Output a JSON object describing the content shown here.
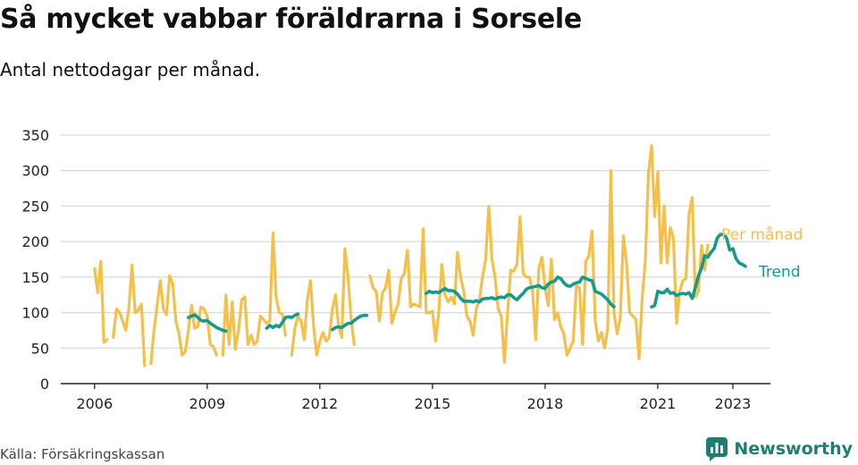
{
  "title": "Så mycket vabbar föräldrarna i Sorsele",
  "subtitle": "Antal nettodagar per månad.",
  "source": "Källa: Försäkringskassan",
  "brand": {
    "name": "Newsworthy",
    "icon": "newsworthy-logo-icon"
  },
  "colors": {
    "monthly": "#f5c04a",
    "trend": "#159a8c",
    "grid": "#d9d9d9",
    "axis": "#222222",
    "text": "#222222"
  },
  "chart_data": {
    "type": "line",
    "title": "Så mycket vabbar föräldrarna i Sorsele",
    "subtitle": "Antal nettodagar per månad.",
    "x_start": "2006-01",
    "x_range": [
      2005.1,
      2024.0
    ],
    "ylim": [
      0,
      350
    ],
    "yticks": [
      0,
      50,
      100,
      150,
      200,
      250,
      300,
      350
    ],
    "xticks": [
      2006,
      2009,
      2012,
      2015,
      2018,
      2021,
      2023
    ],
    "grid": true,
    "legend": "right-end labels",
    "series": [
      {
        "name": "Per månad",
        "color": "#f5c04a",
        "values": [
          162,
          128,
          172,
          58,
          62,
          null,
          65,
          105,
          100,
          88,
          75,
          108,
          167,
          100,
          103,
          112,
          25,
          null,
          28,
          75,
          110,
          145,
          105,
          97,
          152,
          140,
          88,
          70,
          40,
          45,
          75,
          110,
          78,
          80,
          108,
          105,
          95,
          55,
          52,
          40,
          null,
          40,
          125,
          55,
          115,
          48,
          75,
          118,
          122,
          55,
          68,
          55,
          60,
          95,
          90,
          85,
          88,
          212,
          122,
          100,
          98,
          68,
          null,
          40,
          78,
          95,
          88,
          62,
          118,
          145,
          80,
          40,
          60,
          72,
          60,
          65,
          105,
          125,
          80,
          65,
          190,
          150,
          90,
          55,
          null,
          null,
          null,
          null,
          152,
          135,
          130,
          88,
          128,
          135,
          160,
          85,
          100,
          112,
          148,
          155,
          188,
          108,
          112,
          110,
          108,
          218,
          100,
          100,
          102,
          60,
          100,
          168,
          125,
          115,
          122,
          112,
          185,
          150,
          130,
          95,
          88,
          68,
          105,
          118,
          150,
          175,
          250,
          175,
          150,
          105,
          95,
          30,
          100,
          160,
          158,
          168,
          235,
          155,
          150,
          150,
          130,
          62,
          162,
          178,
          135,
          110,
          175,
          90,
          100,
          80,
          70,
          40,
          50,
          60,
          138,
          135,
          55,
          172,
          180,
          215,
          88,
          60,
          72,
          50,
          78,
          300,
          100,
          70,
          92,
          208,
          170,
          100,
          95,
          90,
          35,
          120,
          172,
          295,
          335,
          235,
          298,
          170,
          250,
          170,
          220,
          205,
          85,
          130,
          145,
          148,
          240,
          262,
          122,
          130,
          195,
          160,
          195
        ]
      },
      {
        "name": "Trend",
        "color": "#159a8c",
        "values": [
          null,
          null,
          null,
          null,
          null,
          null,
          null,
          null,
          null,
          null,
          null,
          null,
          null,
          null,
          null,
          null,
          null,
          null,
          null,
          null,
          null,
          null,
          null,
          null,
          null,
          null,
          null,
          null,
          null,
          null,
          93,
          95,
          97,
          93,
          89,
          88,
          89,
          85,
          82,
          79,
          77,
          75,
          74,
          null,
          null,
          null,
          null,
          null,
          null,
          null,
          null,
          null,
          null,
          null,
          null,
          78,
          82,
          79,
          82,
          80,
          86,
          93,
          94,
          93,
          96,
          98,
          null,
          null,
          null,
          null,
          null,
          null,
          null,
          null,
          null,
          null,
          76,
          79,
          80,
          79,
          82,
          85,
          85,
          89,
          92,
          95,
          96,
          96,
          null,
          null,
          null,
          null,
          null,
          null,
          null,
          null,
          null,
          null,
          null,
          null,
          null,
          null,
          null,
          null,
          null,
          null,
          127,
          130,
          128,
          129,
          128,
          131,
          134,
          131,
          131,
          130,
          126,
          120,
          116,
          116,
          116,
          115,
          117,
          115,
          119,
          120,
          120,
          121,
          119,
          121,
          122,
          121,
          125,
          125,
          121,
          118,
          123,
          127,
          133,
          135,
          136,
          137,
          138,
          135,
          134,
          140,
          143,
          144,
          150,
          148,
          142,
          138,
          137,
          140,
          142,
          143,
          150,
          148,
          146,
          145,
          130,
          128,
          126,
          122,
          118,
          112,
          108,
          null,
          null,
          null,
          null,
          null,
          null,
          null,
          null,
          null,
          null,
          null,
          108,
          110,
          130,
          128,
          128,
          133,
          127,
          128,
          124,
          126,
          127,
          126,
          128,
          120,
          135,
          152,
          163,
          180,
          178,
          185,
          190,
          205,
          210,
          210,
          205,
          188,
          190,
          176,
          170,
          168,
          165
        ]
      }
    ]
  }
}
